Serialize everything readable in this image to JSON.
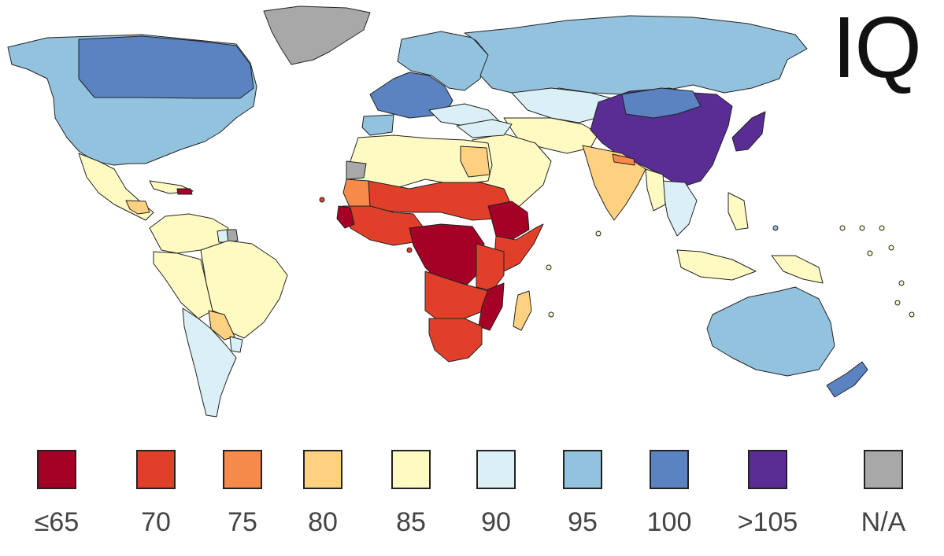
{
  "title": "IQ",
  "legend": [
    {
      "label": "≤65",
      "color": "#a50026"
    },
    {
      "label": "70",
      "color": "#e0402a"
    },
    {
      "label": "75",
      "color": "#f68a4b"
    },
    {
      "label": "80",
      "color": "#fdd17f"
    },
    {
      "label": "85",
      "color": "#fefac2"
    },
    {
      "label": "90",
      "color": "#daf0f6"
    },
    {
      "label": "95",
      "color": "#93c2de"
    },
    {
      "label": "100",
      "color": "#5b83c2"
    },
    {
      "label": ">105",
      "color": "#5a2d95"
    },
    {
      "label": "N/A",
      "color": "#a8a8a8"
    }
  ],
  "regions": {
    "greenland": "N/A",
    "north_america": "95",
    "canada_east": "100",
    "central_america": "85",
    "cuba": "85",
    "caribbean_haiti": "≤65",
    "honduras": "80",
    "colombia_venezuela": "85",
    "guiana": "N/A",
    "suriname": "90",
    "peru_bolivia": "85",
    "brazil": "85",
    "paraguay": "80",
    "argentina_chile": "90",
    "uruguay": "90",
    "western_europe": "100",
    "iberia": "95",
    "eastern_europe": "95",
    "balkans": "90",
    "russia": "95",
    "kazakhstan": "90",
    "central_asia": "85",
    "china": ">105",
    "japan_korea": ">105",
    "mongolia": "100",
    "middle_east": "85",
    "turkey": "90",
    "india": "80",
    "nepal": "75",
    "southeast_asia": "90",
    "myanmar": "85",
    "indonesia": "85",
    "philippines": "85",
    "papua": "85",
    "australia": "95",
    "new_zealand": "100",
    "north_africa": "85",
    "egypt": "80",
    "western_sahara": "N/A",
    "mauritania": "75",
    "sahel": "70",
    "west_africa": "70",
    "sierra_leone": "≤65",
    "central_africa": "≤65",
    "ethiopia": "≤65",
    "somalia_kenya": "70",
    "east_africa": "70",
    "angola_zambia": "70",
    "mozambique": "≤65",
    "southern_africa": "70",
    "madagascar": "80"
  }
}
